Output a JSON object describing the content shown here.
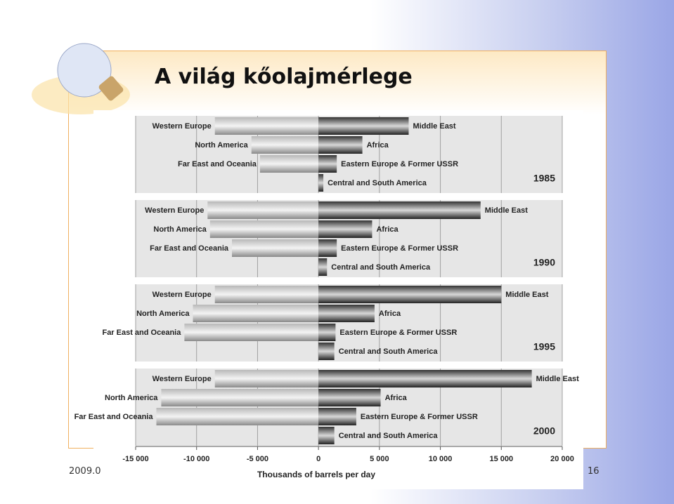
{
  "title": "A világ kőolajmérlege",
  "footer": {
    "date": "2009.0",
    "page": "16"
  },
  "chart_data": {
    "type": "bar",
    "xlabel": "Thousands of barrels per day",
    "xlim": [
      -15000,
      20000
    ],
    "xticks": [
      {
        "value": -15000,
        "label": "-15 000"
      },
      {
        "value": -10000,
        "label": "-10 000"
      },
      {
        "value": -5000,
        "label": "-5 000"
      },
      0,
      {
        "value": 5000,
        "label": "5 000"
      },
      {
        "value": 10000,
        "label": "10 000"
      },
      {
        "value": 15000,
        "label": "15 000"
      },
      {
        "value": 20000,
        "label": "20 000"
      }
    ],
    "grid": true,
    "panels": [
      {
        "label": "1985",
        "categories": [
          "Western Europe",
          "North America",
          "Far East and Oceania",
          "Middle East",
          "Africa",
          "Eastern Europe & Former USSR",
          "Central and South America"
        ],
        "values": [
          -8500,
          -5500,
          -4800,
          7400,
          3600,
          1500,
          400
        ]
      },
      {
        "label": "1990",
        "categories": [
          "Western Europe",
          "North America",
          "Far East and Oceania",
          "Middle East",
          "Africa",
          "Eastern Europe & Former USSR",
          "Central and South America"
        ],
        "values": [
          -9100,
          -8900,
          -7100,
          13300,
          4400,
          1500,
          700
        ]
      },
      {
        "label": "1995",
        "categories": [
          "Western Europe",
          "North America",
          "Far East and Oceania",
          "Middle East",
          "Africa",
          "Eastern Europe & Former USSR",
          "Central and South America"
        ],
        "values": [
          -8500,
          -10300,
          -11000,
          15000,
          4600,
          1400,
          1300
        ]
      },
      {
        "label": "2000",
        "categories": [
          "Western Europe",
          "North America",
          "Far East and Oceania",
          "Middle East",
          "Africa",
          "Eastern Europe & Former USSR",
          "Central and South America"
        ],
        "values": [
          -8500,
          -12900,
          -13300,
          17500,
          5100,
          3100,
          1300
        ]
      }
    ]
  }
}
